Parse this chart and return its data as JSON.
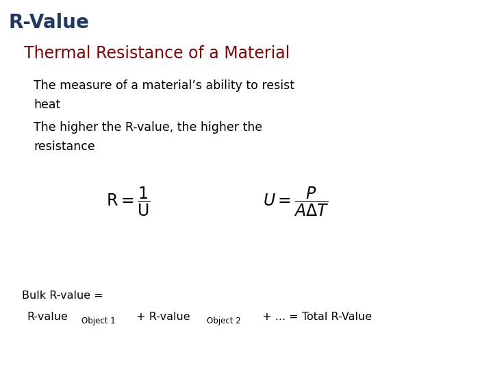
{
  "bg_color": "#ffffff",
  "title": "R-Value",
  "title_color": "#1f3864",
  "title_fontsize": 20,
  "subtitle": "Thermal Resistance of a Material",
  "subtitle_color": "#8b0000",
  "subtitle_fontsize": 17,
  "bullet1_line1": "The measure of a material’s ability to resist",
  "bullet1_line2": "heat",
  "bullet2_line1": "The higher the R-value, the higher the",
  "bullet2_line2": "resistance",
  "bullet_fontsize": 12.5,
  "bullet_color": "#000000",
  "formula_fontsize": 17,
  "bulk_line1": "Bulk R-value =",
  "bulk_fontsize": 11.5,
  "bulk_sub_fontsize": 8.5
}
